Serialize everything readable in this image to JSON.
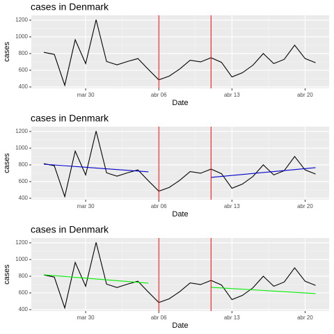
{
  "chart_data": [
    {
      "type": "line",
      "title": "cases in Denmark",
      "x_label": "Date",
      "y_label": "cases",
      "categories": [
        "mar 26",
        "mar 27",
        "mar 28",
        "mar 29",
        "mar 30",
        "mar 31",
        "abr 01",
        "abr 02",
        "abr 03",
        "abr 04",
        "abr 05",
        "abr 06",
        "abr 07",
        "abr 08",
        "abr 09",
        "abr 10",
        "abr 11",
        "abr 12",
        "abr 13",
        "abr 14",
        "abr 15",
        "abr 16",
        "abr 17",
        "abr 18",
        "abr 19",
        "abr 20",
        "abr 21"
      ],
      "series": [
        {
          "color": "#000000",
          "values": [
            815,
            790,
            420,
            965,
            680,
            1205,
            705,
            665,
            705,
            740,
            610,
            485,
            530,
            615,
            720,
            700,
            750,
            695,
            520,
            570,
            660,
            800,
            680,
            730,
            900,
            740,
            690
          ]
        }
      ],
      "vlines": {
        "x": [
          11,
          16
        ],
        "color": "#ff0000"
      },
      "xlim": [
        -1.2,
        27.3
      ],
      "xticks": [
        {
          "value": 4,
          "label": "mar 30"
        },
        {
          "value": 11,
          "label": "abr 06"
        },
        {
          "value": 18,
          "label": "abr 13"
        },
        {
          "value": 25,
          "label": "abr 20"
        }
      ],
      "ylim": [
        383,
        1258
      ],
      "yticks": [
        400,
        600,
        800,
        1000,
        1200
      ],
      "grid": true
    },
    {
      "type": "line",
      "title": "cases in Denmark",
      "x_label": "Date",
      "y_label": "cases",
      "categories": [
        "mar 26",
        "mar 27",
        "mar 28",
        "mar 29",
        "mar 30",
        "mar 31",
        "abr 01",
        "abr 02",
        "abr 03",
        "abr 04",
        "abr 05",
        "abr 06",
        "abr 07",
        "abr 08",
        "abr 09",
        "abr 10",
        "abr 11",
        "abr 12",
        "abr 13",
        "abr 14",
        "abr 15",
        "abr 16",
        "abr 17",
        "abr 18",
        "abr 19",
        "abr 20",
        "abr 21"
      ],
      "series": [
        {
          "color": "#000000",
          "values": [
            815,
            790,
            420,
            965,
            680,
            1205,
            705,
            665,
            705,
            740,
            610,
            485,
            530,
            615,
            720,
            700,
            750,
            695,
            520,
            570,
            660,
            800,
            680,
            730,
            900,
            740,
            690
          ]
        }
      ],
      "fits": [
        {
          "color": "#0000cc",
          "x": [
            0,
            10
          ],
          "values": [
            808,
            717
          ]
        },
        {
          "color": "#0000cc",
          "x": [
            16,
            26
          ],
          "values": [
            650,
            767
          ]
        }
      ],
      "vlines": {
        "x": [
          11,
          16
        ],
        "color": "#ff0000"
      },
      "xlim": [
        -1.2,
        27.3
      ],
      "xticks": [
        {
          "value": 4,
          "label": "mar 30"
        },
        {
          "value": 11,
          "label": "abr 06"
        },
        {
          "value": 18,
          "label": "abr 13"
        },
        {
          "value": 25,
          "label": "abr 20"
        }
      ],
      "ylim": [
        383,
        1258
      ],
      "yticks": [
        400,
        600,
        800,
        1000,
        1200
      ],
      "grid": true
    },
    {
      "type": "line",
      "title": "cases in Denmark",
      "x_label": "Date",
      "y_label": "cases",
      "categories": [
        "mar 26",
        "mar 27",
        "mar 28",
        "mar 29",
        "mar 30",
        "mar 31",
        "abr 01",
        "abr 02",
        "abr 03",
        "abr 04",
        "abr 05",
        "abr 06",
        "abr 07",
        "abr 08",
        "abr 09",
        "abr 10",
        "abr 11",
        "abr 12",
        "abr 13",
        "abr 14",
        "abr 15",
        "abr 16",
        "abr 17",
        "abr 18",
        "abr 19",
        "abr 20",
        "abr 21"
      ],
      "series": [
        {
          "color": "#000000",
          "values": [
            815,
            790,
            420,
            965,
            680,
            1205,
            705,
            665,
            705,
            740,
            610,
            485,
            530,
            615,
            720,
            700,
            750,
            695,
            520,
            570,
            660,
            800,
            680,
            730,
            900,
            740,
            690
          ]
        }
      ],
      "fits": [
        {
          "color": "#00ee00",
          "x": [
            0,
            10
          ],
          "values": [
            817,
            717
          ]
        },
        {
          "color": "#00ee00",
          "x": [
            16,
            26
          ],
          "values": [
            667,
            592
          ]
        }
      ],
      "vlines": {
        "x": [
          11,
          16
        ],
        "color": "#ff0000"
      },
      "xlim": [
        -1.2,
        27.3
      ],
      "xticks": [
        {
          "value": 4,
          "label": "mar 30"
        },
        {
          "value": 11,
          "label": "abr 06"
        },
        {
          "value": 18,
          "label": "abr 13"
        },
        {
          "value": 25,
          "label": "abr 20"
        }
      ],
      "ylim": [
        383,
        1258
      ],
      "yticks": [
        400,
        600,
        800,
        1000,
        1200
      ],
      "grid": true
    }
  ]
}
